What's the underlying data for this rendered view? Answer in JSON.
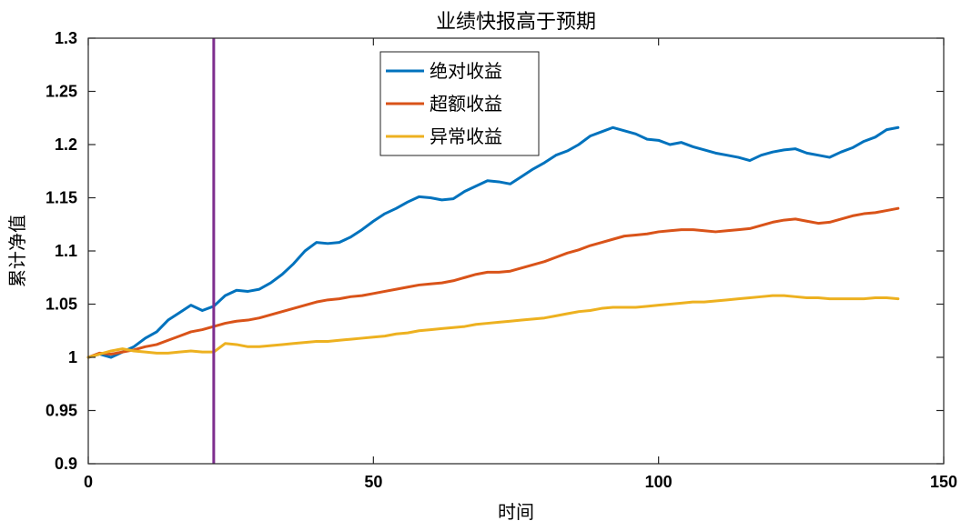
{
  "chart_data": {
    "type": "line",
    "title": "业绩快报高于预期",
    "xlabel": "时间",
    "ylabel": "累计净值",
    "xlim": [
      0,
      150
    ],
    "ylim": [
      0.9,
      1.3
    ],
    "xticks": [
      0,
      50,
      100,
      150
    ],
    "xtick_labels": [
      "0",
      "50",
      "100",
      "150"
    ],
    "yticks": [
      0.9,
      0.95,
      1.0,
      1.05,
      1.1,
      1.15,
      1.2,
      1.25,
      1.3
    ],
    "ytick_labels": [
      "0.9",
      "0.95",
      "1",
      "1.05",
      "1.1",
      "1.15",
      "1.2",
      "1.25",
      "1.3"
    ],
    "grid": false,
    "legend_position": "top-center",
    "event_marker": {
      "x": 22,
      "color": "#7E2F8E"
    },
    "series": [
      {
        "name": "绝对收益",
        "color": "#0072BD",
        "x": [
          0,
          2,
          4,
          6,
          8,
          10,
          12,
          14,
          16,
          18,
          20,
          22,
          24,
          26,
          28,
          30,
          32,
          34,
          36,
          38,
          40,
          42,
          44,
          46,
          48,
          50,
          52,
          54,
          56,
          58,
          60,
          62,
          64,
          66,
          68,
          70,
          72,
          74,
          76,
          78,
          80,
          82,
          84,
          86,
          88,
          90,
          92,
          94,
          96,
          98,
          100,
          102,
          104,
          106,
          108,
          110,
          112,
          114,
          116,
          118,
          120,
          122,
          124,
          126,
          128,
          130,
          132,
          134,
          136,
          138,
          140,
          142
        ],
        "values": [
          1.0,
          1.003,
          1.0,
          1.005,
          1.01,
          1.018,
          1.024,
          1.035,
          1.042,
          1.049,
          1.044,
          1.048,
          1.058,
          1.063,
          1.062,
          1.064,
          1.07,
          1.078,
          1.088,
          1.1,
          1.108,
          1.107,
          1.108,
          1.113,
          1.12,
          1.128,
          1.135,
          1.14,
          1.146,
          1.151,
          1.15,
          1.148,
          1.149,
          1.156,
          1.161,
          1.166,
          1.165,
          1.163,
          1.17,
          1.177,
          1.183,
          1.19,
          1.194,
          1.2,
          1.208,
          1.212,
          1.216,
          1.213,
          1.21,
          1.205,
          1.204,
          1.2,
          1.202,
          1.198,
          1.195,
          1.192,
          1.19,
          1.188,
          1.185,
          1.19,
          1.193,
          1.195,
          1.196,
          1.192,
          1.19,
          1.188,
          1.193,
          1.197,
          1.203,
          1.207,
          1.214,
          1.216
        ]
      },
      {
        "name": "超额收益",
        "color": "#D95319",
        "x": [
          0,
          2,
          4,
          6,
          8,
          10,
          12,
          14,
          16,
          18,
          20,
          22,
          24,
          26,
          28,
          30,
          32,
          34,
          36,
          38,
          40,
          42,
          44,
          46,
          48,
          50,
          52,
          54,
          56,
          58,
          60,
          62,
          64,
          66,
          68,
          70,
          72,
          74,
          76,
          78,
          80,
          82,
          84,
          86,
          88,
          90,
          92,
          94,
          96,
          98,
          100,
          102,
          104,
          106,
          108,
          110,
          112,
          114,
          116,
          118,
          120,
          122,
          124,
          126,
          128,
          130,
          132,
          134,
          136,
          138,
          140,
          142
        ],
        "values": [
          1.0,
          1.004,
          1.003,
          1.005,
          1.007,
          1.01,
          1.012,
          1.016,
          1.02,
          1.024,
          1.026,
          1.029,
          1.032,
          1.034,
          1.035,
          1.037,
          1.04,
          1.043,
          1.046,
          1.049,
          1.052,
          1.054,
          1.055,
          1.057,
          1.058,
          1.06,
          1.062,
          1.064,
          1.066,
          1.068,
          1.069,
          1.07,
          1.072,
          1.075,
          1.078,
          1.08,
          1.08,
          1.081,
          1.084,
          1.087,
          1.09,
          1.094,
          1.098,
          1.101,
          1.105,
          1.108,
          1.111,
          1.114,
          1.115,
          1.116,
          1.118,
          1.119,
          1.12,
          1.12,
          1.119,
          1.118,
          1.119,
          1.12,
          1.121,
          1.124,
          1.127,
          1.129,
          1.13,
          1.128,
          1.126,
          1.127,
          1.13,
          1.133,
          1.135,
          1.136,
          1.138,
          1.14
        ]
      },
      {
        "name": "异常收益",
        "color": "#EDB120",
        "x": [
          0,
          2,
          4,
          6,
          8,
          10,
          12,
          14,
          16,
          18,
          20,
          22,
          24,
          26,
          28,
          30,
          32,
          34,
          36,
          38,
          40,
          42,
          44,
          46,
          48,
          50,
          52,
          54,
          56,
          58,
          60,
          62,
          64,
          66,
          68,
          70,
          72,
          74,
          76,
          78,
          80,
          82,
          84,
          86,
          88,
          90,
          92,
          94,
          96,
          98,
          100,
          102,
          104,
          106,
          108,
          110,
          112,
          114,
          116,
          118,
          120,
          122,
          124,
          126,
          128,
          130,
          132,
          134,
          136,
          138,
          140,
          142
        ],
        "values": [
          1.0,
          1.003,
          1.006,
          1.008,
          1.006,
          1.005,
          1.004,
          1.004,
          1.005,
          1.006,
          1.005,
          1.005,
          1.013,
          1.012,
          1.01,
          1.01,
          1.011,
          1.012,
          1.013,
          1.014,
          1.015,
          1.015,
          1.016,
          1.017,
          1.018,
          1.019,
          1.02,
          1.022,
          1.023,
          1.025,
          1.026,
          1.027,
          1.028,
          1.029,
          1.031,
          1.032,
          1.033,
          1.034,
          1.035,
          1.036,
          1.037,
          1.039,
          1.041,
          1.043,
          1.044,
          1.046,
          1.047,
          1.047,
          1.047,
          1.048,
          1.049,
          1.05,
          1.051,
          1.052,
          1.052,
          1.053,
          1.054,
          1.055,
          1.056,
          1.057,
          1.058,
          1.058,
          1.057,
          1.056,
          1.056,
          1.055,
          1.055,
          1.055,
          1.055,
          1.056,
          1.056,
          1.055
        ]
      }
    ]
  }
}
